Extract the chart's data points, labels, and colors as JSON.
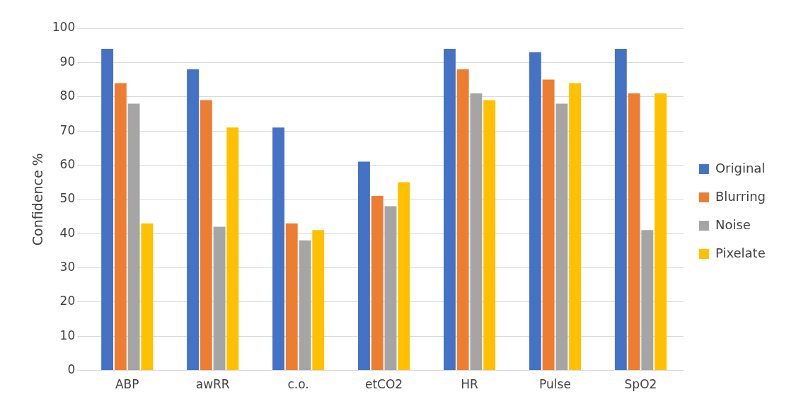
{
  "chart_data": {
    "type": "bar",
    "ylabel": "Confidence %",
    "categories": [
      "ABP",
      "awRR",
      "c.o.",
      "etCO2",
      "HR",
      "Pulse",
      "SpO2"
    ],
    "series": [
      {
        "name": "Original",
        "color": "#4472c4",
        "values": [
          94,
          88,
          71,
          61,
          94,
          93,
          94
        ]
      },
      {
        "name": "Blurring",
        "color": "#ed7d31",
        "values": [
          84,
          79,
          43,
          51,
          88,
          85,
          81
        ]
      },
      {
        "name": "Noise",
        "color": "#a5a5a5",
        "values": [
          78,
          42,
          38,
          48,
          81,
          78,
          41
        ]
      },
      {
        "name": "Pixelate",
        "color": "#ffc000",
        "values": [
          43,
          71,
          41,
          55,
          79,
          84,
          81
        ]
      }
    ],
    "ylim": [
      0,
      100
    ],
    "yticks": [
      0,
      10,
      20,
      30,
      40,
      50,
      60,
      70,
      80,
      90,
      100
    ],
    "grid": "y",
    "legend": "right"
  }
}
